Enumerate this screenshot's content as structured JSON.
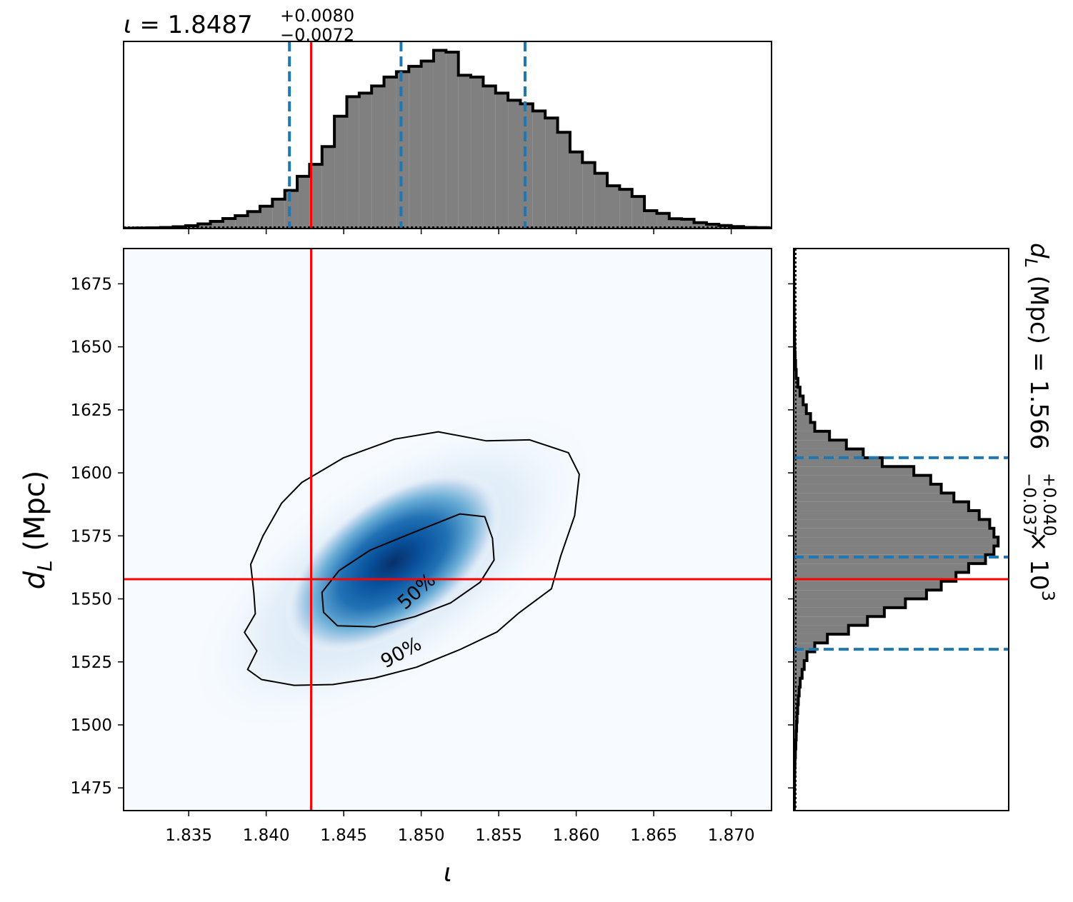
{
  "chart_data": [
    {
      "type": "histogram",
      "panel": "top-marginal",
      "title_symbol": "ι",
      "title_value": "1.8487",
      "title_plus": "+0.0080",
      "title_minus": "−0.0072",
      "xlim": [
        1.8308,
        1.8726
      ],
      "ticks": [
        1.835,
        1.84,
        1.845,
        1.85,
        1.855,
        1.86,
        1.865,
        1.87
      ],
      "bin_width": 0.0008,
      "bin_start": 1.8308,
      "bin_heights": [
        0.002,
        0.003,
        0.004,
        0.006,
        0.01,
        0.016,
        0.026,
        0.04,
        0.056,
        0.072,
        0.095,
        0.125,
        0.165,
        0.214,
        0.293,
        0.36,
        0.46,
        0.63,
        0.74,
        0.76,
        0.8,
        0.85,
        0.88,
        0.91,
        0.94,
        1.0,
        0.99,
        0.86,
        0.85,
        0.8,
        0.76,
        0.72,
        0.7,
        0.66,
        0.62,
        0.54,
        0.43,
        0.37,
        0.31,
        0.24,
        0.22,
        0.18,
        0.1,
        0.085,
        0.055,
        0.052,
        0.033,
        0.024,
        0.017,
        0.011,
        0.006,
        0.005,
        0.003
      ],
      "ymax": 1.05,
      "quantile_lines": [
        1.8415,
        1.8487,
        1.8567
      ],
      "injection": 1.8429,
      "quantile_color": "#1f77b4",
      "injection_color": "#ff0000",
      "fill_color": "#808080"
    },
    {
      "type": "heatmap",
      "panel": "joint",
      "xlabel": "ι",
      "ylabel_symbol": "d",
      "ylabel_sub": "L",
      "ylabel_unit": "(Mpc)",
      "xlim": [
        1.8308,
        1.8726
      ],
      "ylim": [
        1466,
        1689
      ],
      "xticks": [
        "1.835",
        "1.840",
        "1.845",
        "1.850",
        "1.855",
        "1.860",
        "1.865",
        "1.870"
      ],
      "yticks": [
        "1475",
        "1500",
        "1525",
        "1550",
        "1575",
        "1600",
        "1625",
        "1650",
        "1675"
      ],
      "colormap": "Blues",
      "density_peak": [
        1.8482,
        1.5667
      ],
      "contours": [
        {
          "level": "90%",
          "points": [
            [
              1.8392,
              1.5525
            ],
            [
              1.8393,
              1.5441
            ],
            [
              1.8386,
              1.5367
            ],
            [
              1.8394,
              1.5294
            ],
            [
              1.8388,
              1.522
            ],
            [
              1.8397,
              1.518
            ],
            [
              1.8418,
              1.5157
            ],
            [
              1.8443,
              1.516
            ],
            [
              1.847,
              1.5186
            ],
            [
              1.8497,
              1.5229
            ],
            [
              1.8525,
              1.5299
            ],
            [
              1.8549,
              1.5369
            ],
            [
              1.8563,
              1.5444
            ],
            [
              1.8584,
              1.554
            ],
            [
              1.859,
              1.567
            ],
            [
              1.8599,
              1.583
            ],
            [
              1.8602,
              1.5994
            ],
            [
              1.8595,
              1.608
            ],
            [
              1.857,
              1.6131
            ],
            [
              1.8542,
              1.6127
            ],
            [
              1.8511,
              1.6163
            ],
            [
              1.8483,
              1.6134
            ],
            [
              1.845,
              1.606
            ],
            [
              1.8423,
              1.5962
            ],
            [
              1.841,
              1.588
            ],
            [
              1.8398,
              1.5751
            ],
            [
              1.839,
              1.5637
            ]
          ],
          "label_at": [
            1.8487,
            1.5287
          ],
          "label_angle": -29
        },
        {
          "level": "50%",
          "points": [
            [
              1.8437,
              1.5447
            ],
            [
              1.8436,
              1.5526
            ],
            [
              1.8447,
              1.5612
            ],
            [
              1.8467,
              1.5693
            ],
            [
              1.8496,
              1.5766
            ],
            [
              1.8525,
              1.5837
            ],
            [
              1.8541,
              1.5826
            ],
            [
              1.8546,
              1.574
            ],
            [
              1.8547,
              1.5654
            ],
            [
              1.8538,
              1.5566
            ],
            [
              1.8519,
              1.5484
            ],
            [
              1.8496,
              1.543
            ],
            [
              1.847,
              1.5389
            ],
            [
              1.8446,
              1.5393
            ]
          ],
          "label_at": [
            1.8497,
            1.553
          ],
          "label_angle": -42
        }
      ],
      "injection": [
        1.8429,
        1.5578
      ]
    },
    {
      "type": "histogram",
      "panel": "right-marginal",
      "orientation": "horizontal",
      "title_symbol": "d",
      "title_sub": "L",
      "title_unit": "(Mpc) = 1.566",
      "title_plus": "+0.040",
      "title_minus": "−0.037",
      "title_scale": "× 10",
      "title_exp": "3",
      "ylim": [
        1466,
        1689
      ],
      "bin_width": 3.5,
      "bin_start": 1466,
      "bin_heights": [
        0.003,
        0.003,
        0.004,
        0.004,
        0.005,
        0.006,
        0.008,
        0.01,
        0.012,
        0.014,
        0.016,
        0.019,
        0.022,
        0.026,
        0.031,
        0.04,
        0.05,
        0.063,
        0.1,
        0.16,
        0.26,
        0.35,
        0.43,
        0.53,
        0.63,
        0.7,
        0.77,
        0.83,
        0.91,
        0.95,
        0.97,
        0.95,
        0.93,
        0.88,
        0.83,
        0.76,
        0.7,
        0.65,
        0.57,
        0.42,
        0.33,
        0.25,
        0.17,
        0.1,
        0.08,
        0.06,
        0.045,
        0.03,
        0.02,
        0.012,
        0.009,
        0.007,
        0.005,
        0.004,
        0.003,
        0.002,
        0.002,
        0.001,
        0.001,
        0.001,
        0.0,
        0.0,
        0.0,
        0.0
      ],
      "xmax": 1.02,
      "quantile_lines": [
        1530,
        1566.6,
        1606
      ],
      "injection": 1557.8
    }
  ]
}
